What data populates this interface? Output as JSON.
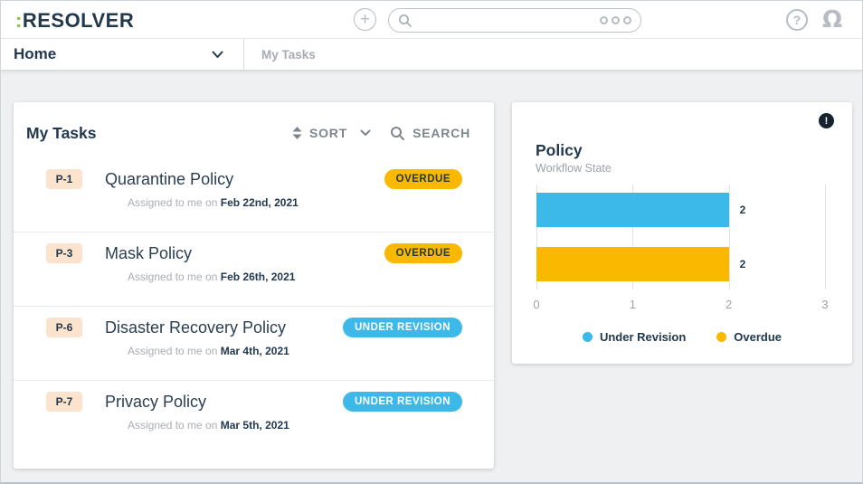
{
  "header": {
    "logo_colon": ":",
    "logo_text": "RESOLVER",
    "search_placeholder": ""
  },
  "nav": {
    "home_label": "Home",
    "breadcrumb": "My Tasks"
  },
  "tasks_card": {
    "title": "My Tasks",
    "sort_label": "SORT",
    "search_label": "SEARCH",
    "items": [
      {
        "id": "P-1",
        "title": "Quarantine Policy",
        "assigned_prefix": "Assigned to me on",
        "date": "Feb 22nd, 2021",
        "status": "OVERDUE",
        "status_color": "#FBB800",
        "status_text_color": "#22384d"
      },
      {
        "id": "P-3",
        "title": "Mask Policy",
        "assigned_prefix": "Assigned to me on",
        "date": "Feb 26th, 2021",
        "status": "OVERDUE",
        "status_color": "#FBB800",
        "status_text_color": "#22384d"
      },
      {
        "id": "P-6",
        "title": "Disaster Recovery Policy",
        "assigned_prefix": "Assigned to me on",
        "date": "Mar 4th, 2021",
        "status": "UNDER REVISION",
        "status_color": "#3CB9E8",
        "status_text_color": "#ffffff"
      },
      {
        "id": "P-7",
        "title": "Privacy Policy",
        "assigned_prefix": "Assigned to me on",
        "date": "Mar 5th, 2021",
        "status": "UNDER REVISION",
        "status_color": "#3CB9E8",
        "status_text_color": "#ffffff"
      }
    ]
  },
  "chart_card": {
    "title": "Policy",
    "subtitle": "Workflow State",
    "info_glyph": "!"
  },
  "chart_data": {
    "type": "bar",
    "orientation": "horizontal",
    "title": "Policy",
    "subtitle": "Workflow State",
    "categories": [
      "Under Revision",
      "Overdue"
    ],
    "values": [
      2,
      2
    ],
    "value_labels": [
      "2",
      "2"
    ],
    "colors": [
      "#3CB9E8",
      "#FBB800"
    ],
    "xlim": [
      0,
      3
    ],
    "xticks": [
      0,
      1,
      2,
      3
    ],
    "grid": true,
    "legend_position": "bottom",
    "legend": [
      {
        "label": "Under Revision",
        "color": "#3CB9E8"
      },
      {
        "label": "Overdue",
        "color": "#FBB800"
      }
    ]
  }
}
